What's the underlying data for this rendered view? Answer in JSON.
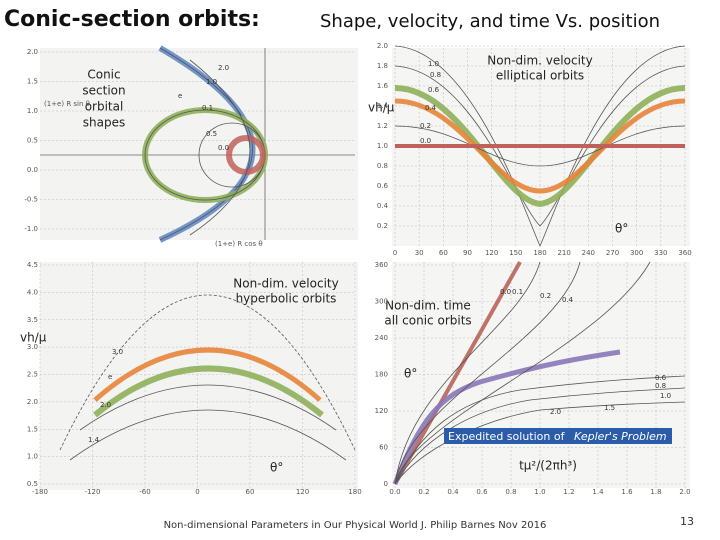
{
  "title": "Conic-section orbits:",
  "subtitle": "Shape, velocity, and time Vs. position",
  "panels": [
    {
      "annotation": [
        "Conic",
        "section",
        "orbital",
        "shapes"
      ],
      "y_axis_label": "(1+e) R sin θ",
      "x_axis_label": "(1+e) R cos θ",
      "yticks": [
        "2.0",
        "1.5",
        "1.0",
        "0.5",
        "0.0",
        "-0.5",
        "-1.0"
      ],
      "curve_labels": [
        "2.0",
        "1.0",
        "e",
        "0.1",
        "0.5",
        "0.0"
      ]
    },
    {
      "annotation": [
        "Non-dim. velocity",
        "elliptical orbits"
      ],
      "y_axis_label": "vh/μ",
      "x_axis_label": "θ°",
      "yticks": [
        "2.0",
        "1.8",
        "1.6",
        "1.4",
        "1.2",
        "1.0",
        "0.8",
        "0.6",
        "0.4",
        "0.2"
      ],
      "xticks": [
        "0",
        "30",
        "60",
        "90",
        "120",
        "150",
        "180",
        "210",
        "240",
        "270",
        "300",
        "330",
        "360"
      ],
      "curve_labels": [
        "1.0",
        "0.8",
        "0.6",
        "0.4",
        "0.2",
        "0.0"
      ]
    },
    {
      "annotation": [
        "Non-dim. velocity",
        "hyperbolic orbits"
      ],
      "y_axis_label": "vh/μ",
      "x_axis_label": "θ°",
      "yticks": [
        "4.5",
        "4.0",
        "3.5",
        "3.0",
        "2.5",
        "2.0",
        "1.5",
        "1.0",
        "0.5"
      ],
      "xticks": [
        "-180",
        "-120",
        "-60",
        "0",
        "60",
        "120",
        "180"
      ],
      "curve_labels": [
        "3.0",
        "e",
        "2.0",
        "1.4"
      ]
    },
    {
      "annotation": [
        "Non-dim. time",
        "all conic orbits"
      ],
      "y_axis_label": "θ°",
      "x_axis_label": "tμ²/(2πh³)",
      "callout": [
        "Expedited solution of",
        "Kepler's Problem"
      ],
      "yticks": [
        "360",
        "300",
        "240",
        "180",
        "120",
        "60",
        "0"
      ],
      "xticks": [
        "0.0",
        "0.2",
        "0.4",
        "0.6",
        "0.8",
        "1.0",
        "1.2",
        "1.4",
        "1.6",
        "1.8",
        "2.0"
      ],
      "curve_labels": [
        "0.0",
        "0.1",
        "0.2",
        "0.4",
        "0.6",
        "0.8",
        "1.0",
        "1.5",
        "2.0"
      ]
    }
  ],
  "footer": "Non-dimensional Parameters in Our Physical World   J. Philip Barnes   Nov 2016",
  "page_number": "13"
}
